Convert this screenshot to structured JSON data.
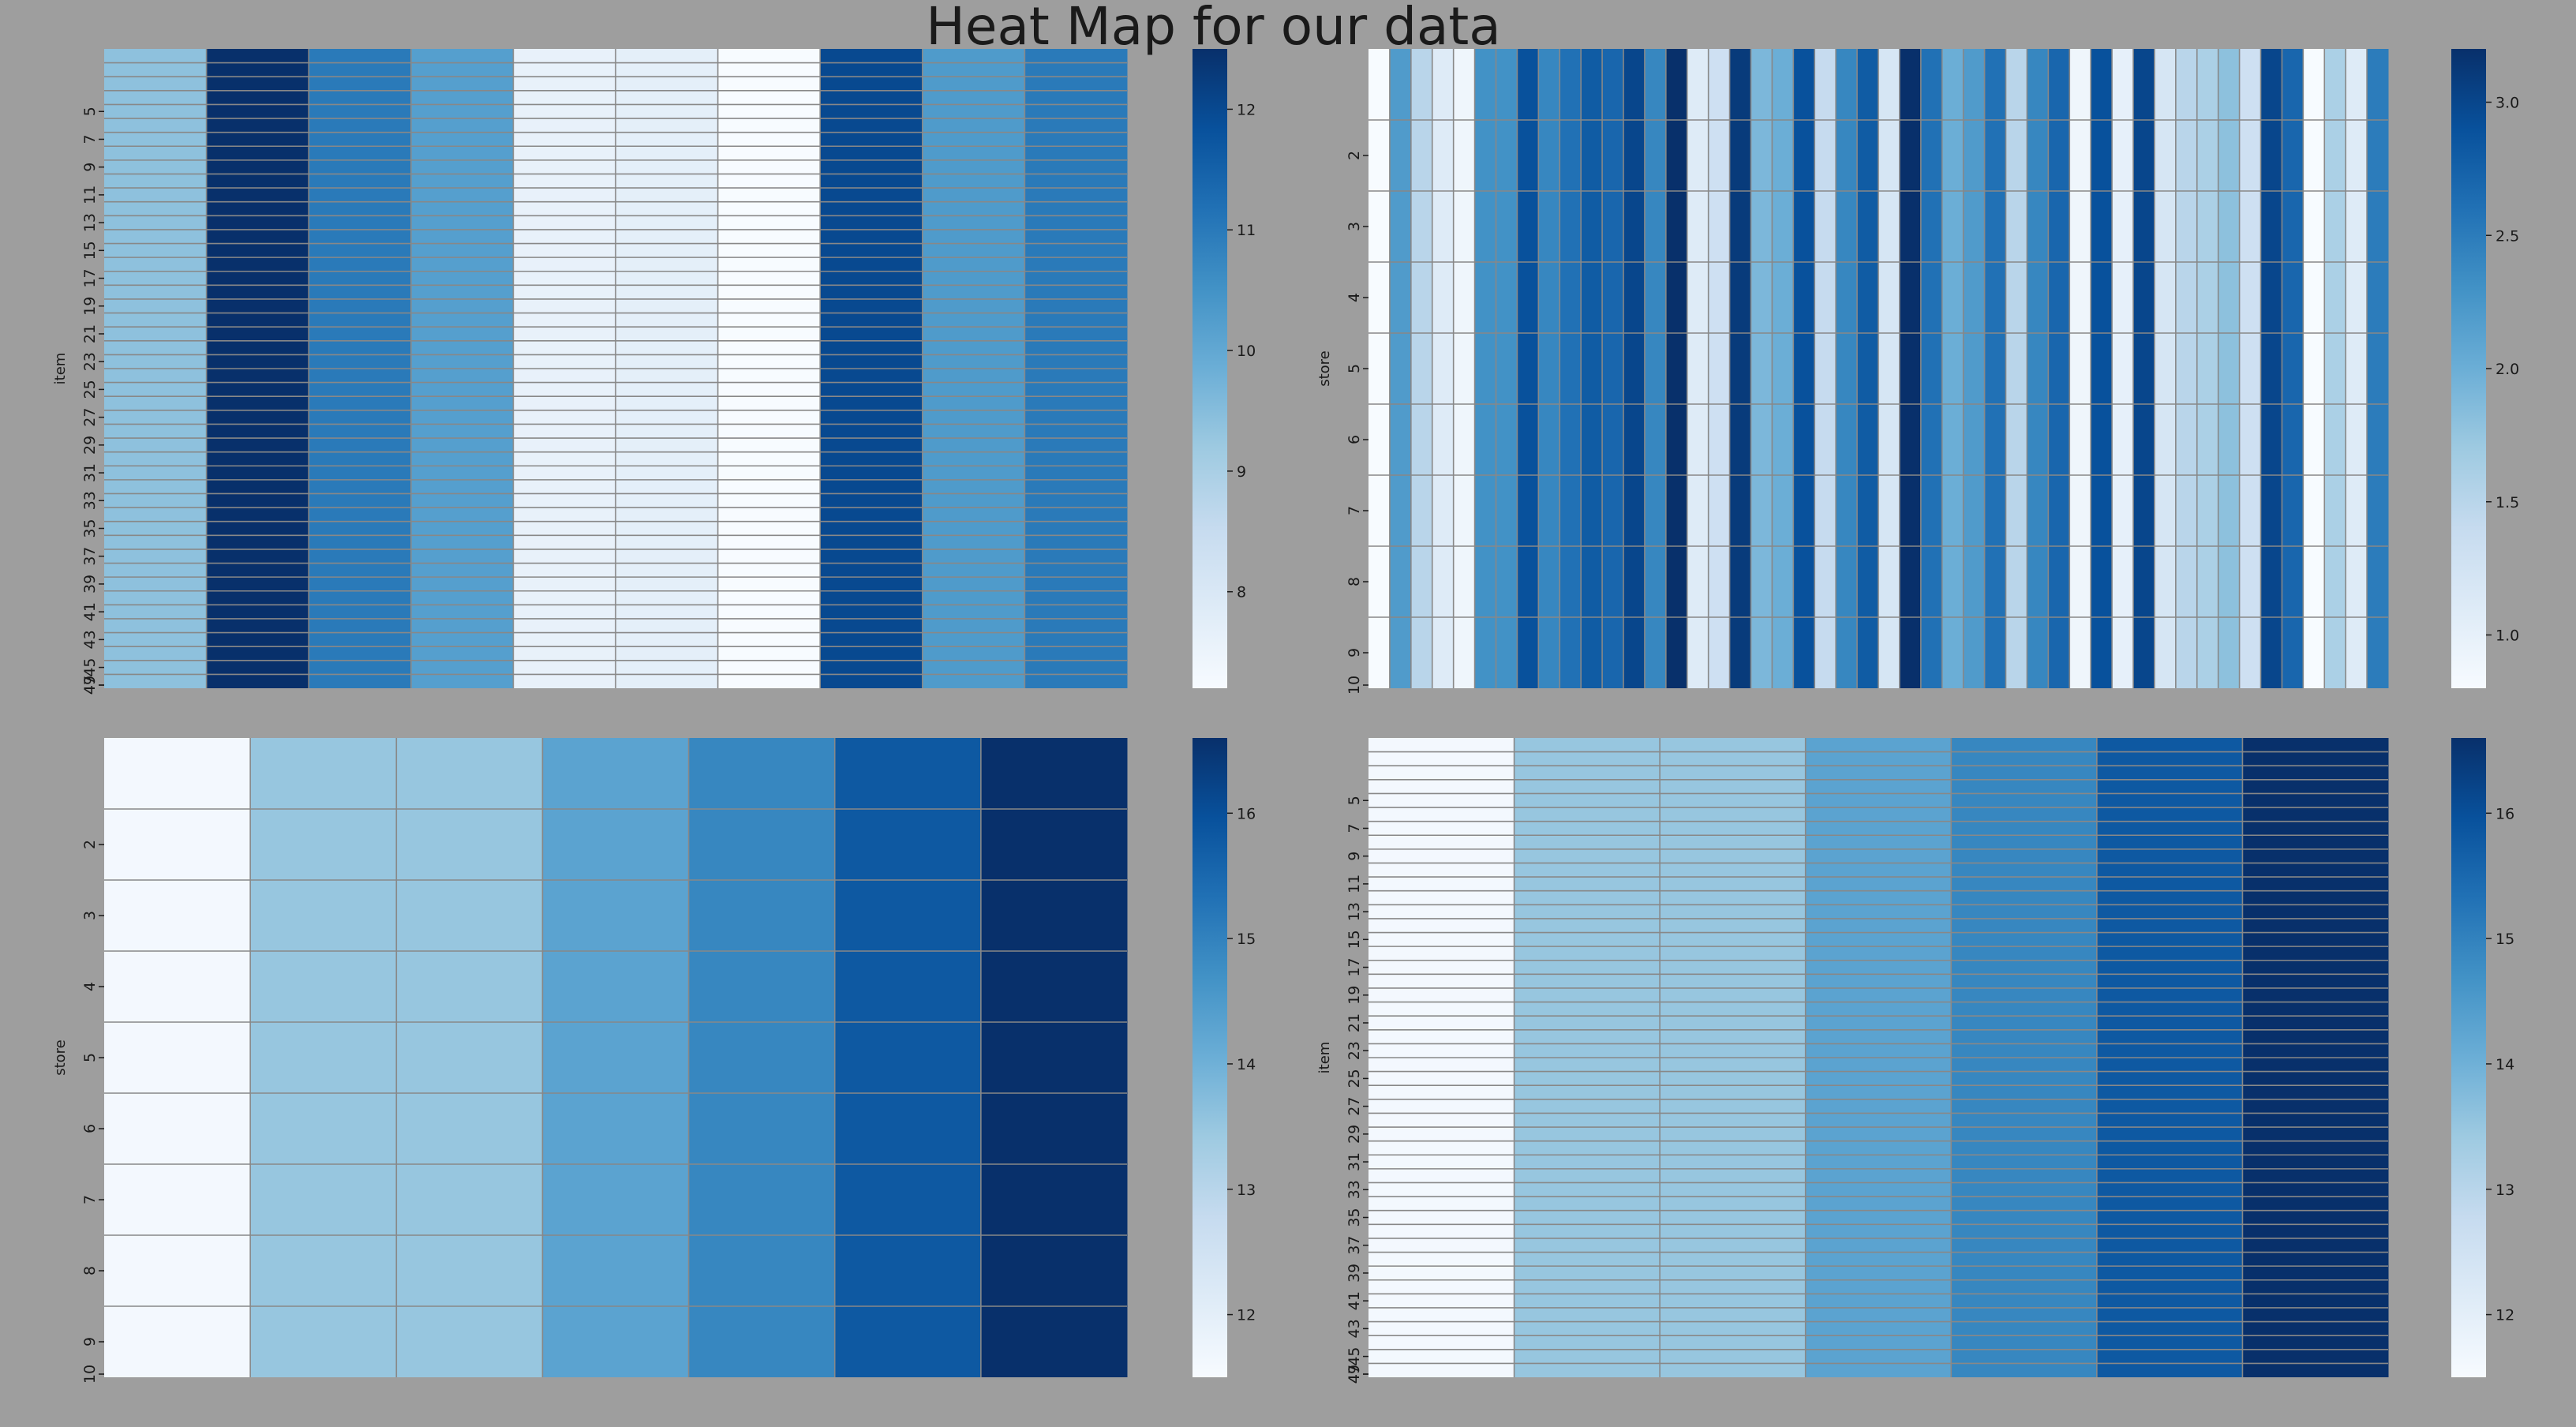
{
  "title": "Heat Map for our data",
  "colormap": [
    "#f7fbff",
    "#deebf7",
    "#c6dbef",
    "#9ecae1",
    "#6baed6",
    "#4292c6",
    "#2171b5",
    "#08519c",
    "#08306b"
  ],
  "grid_color": "#888888",
  "chart_data": [
    {
      "type": "heatmap",
      "ylabel": "item",
      "xlabel": "",
      "y_tick_labels": [
        "5",
        "7",
        "9",
        "11",
        "13",
        "15",
        "17",
        "19",
        "21",
        "23",
        "25",
        "27",
        "29",
        "31",
        "33",
        "35",
        "37",
        "39",
        "41",
        "43",
        "45",
        "47",
        "49"
      ],
      "y_tick_first_row": 4,
      "row_count": 46,
      "columns": [
        9.4,
        12.5,
        11.0,
        10.2,
        7.6,
        7.7,
        7.2,
        12.0,
        10.3,
        11.0
      ],
      "vmin": 7.2,
      "vmax": 12.5,
      "colorbar_ticks": [
        "8",
        "9",
        "10",
        "11",
        "12"
      ],
      "colorbar_tick_values": [
        8,
        9,
        10,
        11,
        12
      ]
    },
    {
      "type": "heatmap",
      "ylabel": "store",
      "xlabel": "",
      "y_tick_labels": [
        "2",
        "3",
        "4",
        "5",
        "6",
        "7",
        "8",
        "9",
        "10"
      ],
      "y_tick_first_row": 1,
      "row_count": 9,
      "columns": [
        0.8,
        2.2,
        1.5,
        1.1,
        0.9,
        2.3,
        2.3,
        2.9,
        2.4,
        2.6,
        2.8,
        2.7,
        3.0,
        2.4,
        3.2,
        1.1,
        1.3,
        3.1,
        1.9,
        2.0,
        2.9,
        1.4,
        2.4,
        2.8,
        1.2,
        3.2,
        2.6,
        2.0,
        2.2,
        2.6,
        1.5,
        2.4,
        2.7,
        0.9,
        2.9,
        1.0,
        3.0,
        1.2,
        1.5,
        1.6,
        1.8,
        1.3,
        3.0,
        2.7,
        0.8,
        1.6,
        1.1,
        2.5
      ],
      "vmin": 0.8,
      "vmax": 3.2,
      "colorbar_ticks": [
        "1.0",
        "1.5",
        "2.0",
        "2.5",
        "3.0"
      ],
      "colorbar_tick_values": [
        1.0,
        1.5,
        2.0,
        2.5,
        3.0
      ]
    },
    {
      "type": "heatmap",
      "ylabel": "store",
      "xlabel": "",
      "y_tick_labels": [
        "2",
        "3",
        "4",
        "5",
        "6",
        "7",
        "8",
        "9",
        "10"
      ],
      "y_tick_first_row": 1,
      "row_count": 9,
      "columns": [
        11.6,
        13.5,
        13.5,
        14.3,
        14.9,
        15.8,
        16.6
      ],
      "vmin": 11.5,
      "vmax": 16.6,
      "colorbar_ticks": [
        "12",
        "13",
        "14",
        "15",
        "16"
      ],
      "colorbar_tick_values": [
        12,
        13,
        14,
        15,
        16
      ]
    },
    {
      "type": "heatmap",
      "ylabel": "item",
      "xlabel": "",
      "y_tick_labels": [
        "5",
        "7",
        "9",
        "11",
        "13",
        "15",
        "17",
        "19",
        "21",
        "23",
        "25",
        "27",
        "29",
        "31",
        "33",
        "35",
        "37",
        "39",
        "41",
        "43",
        "45",
        "47",
        "49"
      ],
      "y_tick_first_row": 4,
      "row_count": 46,
      "columns": [
        11.6,
        13.5,
        13.5,
        14.3,
        14.9,
        15.8,
        16.6
      ],
      "vmin": 11.5,
      "vmax": 16.6,
      "colorbar_ticks": [
        "12",
        "13",
        "14",
        "15",
        "16"
      ],
      "colorbar_tick_values": [
        12,
        13,
        14,
        15,
        16
      ]
    }
  ]
}
